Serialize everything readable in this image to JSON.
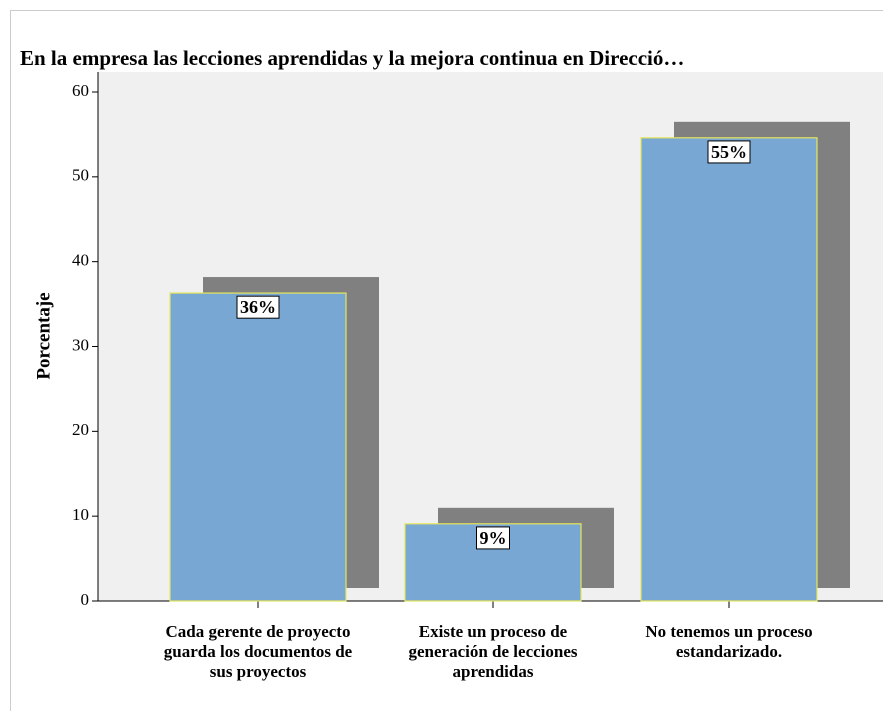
{
  "chart_data": {
    "type": "bar",
    "title": "En la empresa las lecciones aprendidas y la mejora continua en Direcció…",
    "y_label": "Porcentaje",
    "categories": [
      "Cada gerente de proyecto guarda los documentos de sus proyectos",
      "Existe un proceso de generación de lecciones aprendidas",
      "No tenemos un proceso estandarizado."
    ],
    "values": [
      36.3,
      9.1,
      54.6
    ],
    "value_labels": [
      "36%",
      "9%",
      "55%"
    ],
    "color": "#79a7d3",
    "ylim": [
      0,
      60
    ],
    "yticks": [
      0,
      10,
      20,
      30,
      40,
      50,
      60
    ]
  }
}
